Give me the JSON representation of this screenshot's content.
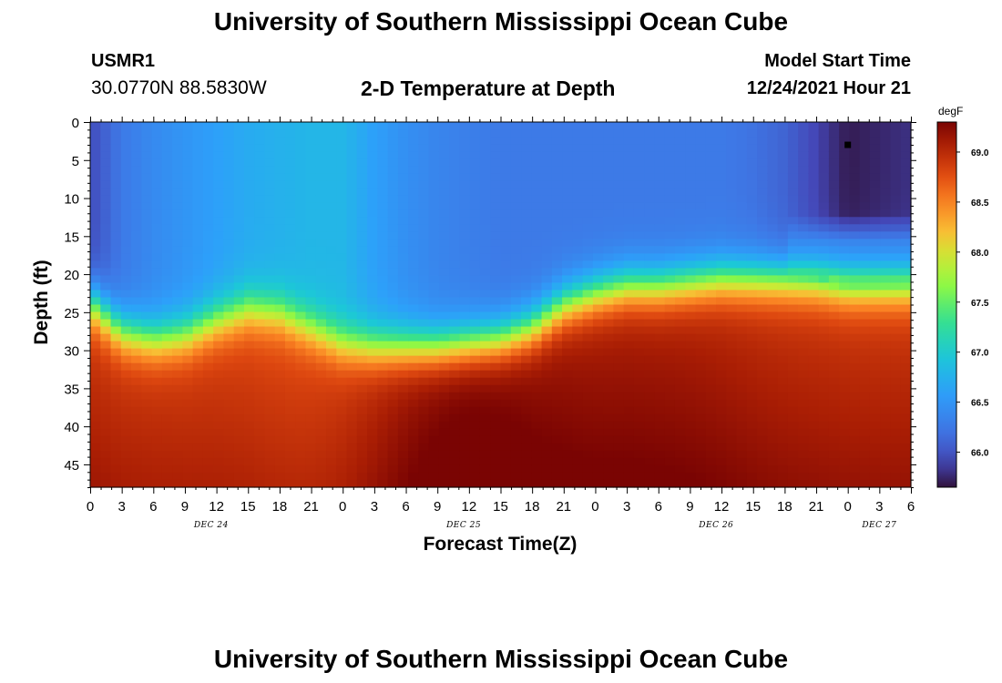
{
  "header": {
    "title": "University of Southern Mississippi Ocean Cube",
    "station_id": "USMR1",
    "coordinates": "30.0770N  88.5830W",
    "plot_title": "2-D Temperature at Depth",
    "model_start_label": "Model Start Time",
    "model_start_value": "12/24/2021 Hour 21"
  },
  "footer": {
    "title": "University of Southern Mississippi Ocean Cube"
  },
  "chart_data": {
    "type": "heatmap",
    "title": "2-D Temperature at Depth",
    "xlabel": "Forecast Time(Z)",
    "ylabel": "Depth (ft)",
    "x_ticks": [
      "0",
      "3",
      "6",
      "9",
      "12",
      "15",
      "18",
      "21",
      "0",
      "3",
      "6",
      "9",
      "12",
      "15",
      "18",
      "21",
      "0",
      "3",
      "6",
      "9",
      "12",
      "15",
      "18",
      "21",
      "0",
      "3",
      "6"
    ],
    "x_hours": [
      0,
      3,
      6,
      9,
      12,
      15,
      18,
      21,
      24,
      27,
      30,
      33,
      36,
      39,
      42,
      45,
      48,
      51,
      54,
      57,
      60,
      63,
      66,
      69,
      72,
      75,
      78
    ],
    "x_range_hours": [
      0,
      78
    ],
    "date_labels": [
      {
        "text": "DEC 24",
        "hour": 11.5
      },
      {
        "text": "DEC 25",
        "hour": 35.5
      },
      {
        "text": "DEC 26",
        "hour": 59.5
      },
      {
        "text": "DEC 27",
        "hour": 75
      }
    ],
    "y_ticks": [
      "0",
      "5",
      "10",
      "15",
      "20",
      "25",
      "30",
      "35",
      "40",
      "45"
    ],
    "y_range_ft": [
      0,
      48
    ],
    "y_reversed": true,
    "colorbar": {
      "unit": "degF",
      "min": 65.65,
      "max": 69.3,
      "tick_labels": [
        "69.0",
        "68.5",
        "68.0",
        "67.5",
        "67.0",
        "66.5",
        "66.0"
      ],
      "tick_values": [
        69.0,
        68.5,
        68.0,
        67.5,
        67.0,
        66.5,
        66.0
      ]
    },
    "thermocline_depth_ft": [
      [
        0,
        23.5
      ],
      [
        3,
        27.5
      ],
      [
        6,
        28.5
      ],
      [
        9,
        28
      ],
      [
        12,
        26
      ],
      [
        15,
        24.5
      ],
      [
        18,
        25
      ],
      [
        21,
        27
      ],
      [
        24,
        29
      ],
      [
        27,
        29.5
      ],
      [
        30,
        29.5
      ],
      [
        33,
        29.5
      ],
      [
        36,
        29
      ],
      [
        39,
        28.5
      ],
      [
        42,
        27
      ],
      [
        45,
        24
      ],
      [
        48,
        22.5
      ],
      [
        51,
        21.5
      ],
      [
        54,
        21.5
      ],
      [
        57,
        21
      ],
      [
        60,
        20.5
      ],
      [
        63,
        20.5
      ],
      [
        66,
        20.5
      ],
      [
        69,
        20.5
      ],
      [
        72,
        21
      ],
      [
        75,
        21
      ],
      [
        78,
        21
      ]
    ],
    "surface_temp_degF": [
      [
        0,
        65.95
      ],
      [
        3,
        66.25
      ],
      [
        6,
        66.4
      ],
      [
        9,
        66.5
      ],
      [
        12,
        66.6
      ],
      [
        15,
        66.7
      ],
      [
        18,
        66.75
      ],
      [
        21,
        66.8
      ],
      [
        24,
        66.8
      ],
      [
        27,
        66.6
      ],
      [
        30,
        66.45
      ],
      [
        33,
        66.35
      ],
      [
        36,
        66.3
      ],
      [
        39,
        66.25
      ],
      [
        42,
        66.25
      ],
      [
        45,
        66.25
      ],
      [
        48,
        66.25
      ],
      [
        51,
        66.25
      ],
      [
        54,
        66.25
      ],
      [
        57,
        66.25
      ],
      [
        60,
        66.25
      ],
      [
        63,
        66.2
      ],
      [
        66,
        66.1
      ],
      [
        69,
        65.9
      ],
      [
        72,
        65.7
      ],
      [
        75,
        65.75
      ],
      [
        78,
        65.8
      ]
    ],
    "marker": {
      "hour": 72,
      "depth_ft": 3
    }
  }
}
